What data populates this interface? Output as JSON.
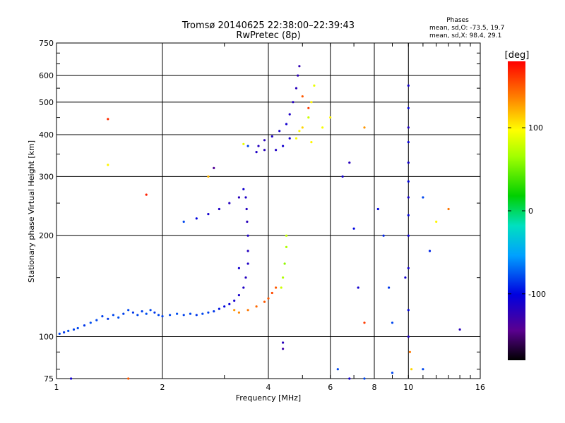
{
  "header": {
    "title_line1": "Tromsø 20140625 22:38:00–22:39:43",
    "title_line2": "RwPretec (8p)"
  },
  "phases_box": {
    "heading": "Phases",
    "line_o": "mean, sd,O: -73.5, 19.7",
    "line_x": "mean, sd,X:  98.4, 29.1"
  },
  "colorbar": {
    "label": "[deg]",
    "range": [
      -180,
      180
    ],
    "ticks": [
      {
        "value": 100,
        "label": "100"
      },
      {
        "value": 0,
        "label": "0"
      },
      {
        "value": -100,
        "label": "-100"
      }
    ]
  },
  "chart_data": {
    "type": "scatter",
    "title": "Tromsø 20140625 22:38:00–22:39:43",
    "subtitle": "RwPretec (8p)",
    "xlabel": "Frequency [MHz]",
    "ylabel": "Stationary phase Virtual Height [km]",
    "x_scale": "log",
    "y_scale": "log",
    "xlim": [
      1,
      16
    ],
    "ylim": [
      75,
      750
    ],
    "x_ticks": [
      {
        "value": 1,
        "label": "1"
      },
      {
        "value": 2,
        "label": "2"
      },
      {
        "value": 4,
        "label": "4"
      },
      {
        "value": 6,
        "label": "6"
      },
      {
        "value": 8,
        "label": "8"
      },
      {
        "value": 10,
        "label": "10"
      },
      {
        "value": 16,
        "label": "16"
      }
    ],
    "y_ticks": [
      {
        "value": 75,
        "label": "75"
      },
      {
        "value": 100,
        "label": "100"
      },
      {
        "value": 200,
        "label": "200"
      },
      {
        "value": 300,
        "label": "300"
      },
      {
        "value": 400,
        "label": "400"
      },
      {
        "value": 500,
        "label": "500"
      },
      {
        "value": 600,
        "label": "600"
      },
      {
        "value": 750,
        "label": "750"
      }
    ],
    "grid": true,
    "color_encoding": "phase [deg], rainbow colormap from -180 to 180",
    "series": [
      {
        "points": [
          {
            "x": 1.02,
            "y": 102,
            "p": -80
          },
          {
            "x": 1.05,
            "y": 103,
            "p": -85
          },
          {
            "x": 1.08,
            "y": 104,
            "p": -78
          },
          {
            "x": 1.12,
            "y": 105,
            "p": -82
          },
          {
            "x": 1.15,
            "y": 106,
            "p": -80
          },
          {
            "x": 1.2,
            "y": 108,
            "p": -85
          },
          {
            "x": 1.25,
            "y": 110,
            "p": -78
          },
          {
            "x": 1.3,
            "y": 112,
            "p": -80
          },
          {
            "x": 1.35,
            "y": 115,
            "p": -82
          },
          {
            "x": 1.4,
            "y": 113,
            "p": -85
          },
          {
            "x": 1.45,
            "y": 116,
            "p": -80
          },
          {
            "x": 1.5,
            "y": 114,
            "p": -78
          },
          {
            "x": 1.55,
            "y": 117,
            "p": -82
          },
          {
            "x": 1.6,
            "y": 120,
            "p": -80
          },
          {
            "x": 1.65,
            "y": 118,
            "p": -85
          },
          {
            "x": 1.7,
            "y": 116,
            "p": -80
          },
          {
            "x": 1.75,
            "y": 119,
            "p": -82
          },
          {
            "x": 1.8,
            "y": 117,
            "p": -78
          },
          {
            "x": 1.85,
            "y": 120,
            "p": -80
          },
          {
            "x": 1.9,
            "y": 118,
            "p": -85
          },
          {
            "x": 1.95,
            "y": 116,
            "p": -80
          },
          {
            "x": 2.0,
            "y": 115,
            "p": -82
          },
          {
            "x": 2.1,
            "y": 116,
            "p": -80
          },
          {
            "x": 2.2,
            "y": 117,
            "p": -78
          },
          {
            "x": 2.3,
            "y": 116,
            "p": -82
          },
          {
            "x": 2.4,
            "y": 117,
            "p": -80
          },
          {
            "x": 2.5,
            "y": 116,
            "p": -85
          },
          {
            "x": 2.6,
            "y": 117,
            "p": -80
          },
          {
            "x": 2.7,
            "y": 118,
            "p": -82
          },
          {
            "x": 2.8,
            "y": 119,
            "p": -85
          },
          {
            "x": 2.9,
            "y": 121,
            "p": -95
          },
          {
            "x": 3.0,
            "y": 123,
            "p": -100
          },
          {
            "x": 3.1,
            "y": 125,
            "p": -105
          },
          {
            "x": 3.2,
            "y": 128,
            "p": -110
          },
          {
            "x": 3.3,
            "y": 133,
            "p": -112
          },
          {
            "x": 3.4,
            "y": 140,
            "p": -115
          },
          {
            "x": 3.45,
            "y": 150,
            "p": -118
          },
          {
            "x": 3.5,
            "y": 165,
            "p": -115
          },
          {
            "x": 3.5,
            "y": 180,
            "p": -118
          },
          {
            "x": 3.5,
            "y": 200,
            "p": -115
          },
          {
            "x": 3.48,
            "y": 220,
            "p": -120
          },
          {
            "x": 3.47,
            "y": 240,
            "p": -118
          },
          {
            "x": 3.45,
            "y": 260,
            "p": -115
          },
          {
            "x": 3.4,
            "y": 275,
            "p": -110
          },
          {
            "x": 2.3,
            "y": 220,
            "p": -80
          },
          {
            "x": 2.5,
            "y": 225,
            "p": -100
          },
          {
            "x": 2.7,
            "y": 232,
            "p": -110
          },
          {
            "x": 2.9,
            "y": 240,
            "p": -115
          },
          {
            "x": 3.1,
            "y": 250,
            "p": -118
          },
          {
            "x": 3.3,
            "y": 260,
            "p": -120
          },
          {
            "x": 3.2,
            "y": 120,
            "p": 130
          },
          {
            "x": 3.3,
            "y": 118,
            "p": 135
          },
          {
            "x": 3.5,
            "y": 120,
            "p": 140
          },
          {
            "x": 3.7,
            "y": 123,
            "p": 145
          },
          {
            "x": 3.9,
            "y": 127,
            "p": 150
          },
          {
            "x": 4.0,
            "y": 130,
            "p": 150
          },
          {
            "x": 4.1,
            "y": 135,
            "p": 155
          },
          {
            "x": 4.2,
            "y": 140,
            "p": 150
          },
          {
            "x": 4.35,
            "y": 140,
            "p": 80
          },
          {
            "x": 4.4,
            "y": 150,
            "p": 70
          },
          {
            "x": 4.45,
            "y": 165,
            "p": 60
          },
          {
            "x": 4.5,
            "y": 185,
            "p": 70
          },
          {
            "x": 4.5,
            "y": 200,
            "p": 75
          },
          {
            "x": 3.9,
            "y": 360,
            "p": -120
          },
          {
            "x": 3.7,
            "y": 355,
            "p": -115
          },
          {
            "x": 3.75,
            "y": 370,
            "p": -118
          },
          {
            "x": 3.9,
            "y": 385,
            "p": -120
          },
          {
            "x": 4.1,
            "y": 395,
            "p": -115
          },
          {
            "x": 4.3,
            "y": 410,
            "p": -112
          },
          {
            "x": 4.5,
            "y": 430,
            "p": -110
          },
          {
            "x": 4.6,
            "y": 460,
            "p": -115
          },
          {
            "x": 4.7,
            "y": 500,
            "p": -118
          },
          {
            "x": 4.8,
            "y": 550,
            "p": -120
          },
          {
            "x": 4.85,
            "y": 600,
            "p": -122
          },
          {
            "x": 4.9,
            "y": 640,
            "p": -125
          },
          {
            "x": 4.2,
            "y": 360,
            "p": -115
          },
          {
            "x": 4.4,
            "y": 370,
            "p": -110
          },
          {
            "x": 4.6,
            "y": 390,
            "p": -112
          },
          {
            "x": 4.9,
            "y": 410,
            "p": 100
          },
          {
            "x": 5.0,
            "y": 420,
            "p": 110
          },
          {
            "x": 5.2,
            "y": 450,
            "p": 80
          },
          {
            "x": 5.3,
            "y": 500,
            "p": 100
          },
          {
            "x": 5.4,
            "y": 560,
            "p": 90
          },
          {
            "x": 4.8,
            "y": 390,
            "p": 95
          },
          {
            "x": 5.3,
            "y": 380,
            "p": 100
          },
          {
            "x": 5.7,
            "y": 420,
            "p": 95
          },
          {
            "x": 6.0,
            "y": 450,
            "p": 100
          },
          {
            "x": 5.0,
            "y": 520,
            "p": 150
          },
          {
            "x": 5.2,
            "y": 480,
            "p": 160
          },
          {
            "x": 1.4,
            "y": 445,
            "p": 165
          },
          {
            "x": 1.4,
            "y": 325,
            "p": 100
          },
          {
            "x": 1.8,
            "y": 265,
            "p": 170
          },
          {
            "x": 2.8,
            "y": 318,
            "p": -140
          },
          {
            "x": 2.7,
            "y": 300,
            "p": 120
          },
          {
            "x": 3.4,
            "y": 375,
            "p": 90
          },
          {
            "x": 3.5,
            "y": 370,
            "p": -80
          },
          {
            "x": 3.3,
            "y": 160,
            "p": -110
          },
          {
            "x": 4.4,
            "y": 92,
            "p": -130
          },
          {
            "x": 4.4,
            "y": 96,
            "p": -120
          },
          {
            "x": 6.3,
            "y": 80,
            "p": -80
          },
          {
            "x": 6.5,
            "y": 300,
            "p": -110
          },
          {
            "x": 6.8,
            "y": 330,
            "p": -120
          },
          {
            "x": 7.0,
            "y": 210,
            "p": -100
          },
          {
            "x": 7.2,
            "y": 140,
            "p": -110
          },
          {
            "x": 7.5,
            "y": 110,
            "p": 160
          },
          {
            "x": 7.5,
            "y": 420,
            "p": 130
          },
          {
            "x": 8.2,
            "y": 240,
            "p": -100
          },
          {
            "x": 8.5,
            "y": 200,
            "p": -90
          },
          {
            "x": 8.8,
            "y": 140,
            "p": -85
          },
          {
            "x": 9.0,
            "y": 110,
            "p": -80
          },
          {
            "x": 10.0,
            "y": 560,
            "p": -110
          },
          {
            "x": 10.0,
            "y": 480,
            "p": -100
          },
          {
            "x": 10.0,
            "y": 420,
            "p": -115
          },
          {
            "x": 10.0,
            "y": 380,
            "p": -105
          },
          {
            "x": 10.0,
            "y": 330,
            "p": -110
          },
          {
            "x": 10.0,
            "y": 290,
            "p": -100
          },
          {
            "x": 10.0,
            "y": 260,
            "p": -110
          },
          {
            "x": 10.0,
            "y": 230,
            "p": -100
          },
          {
            "x": 10.0,
            "y": 200,
            "p": -105
          },
          {
            "x": 10.0,
            "y": 160,
            "p": -110
          },
          {
            "x": 10.0,
            "y": 120,
            "p": -100
          },
          {
            "x": 10.0,
            "y": 100,
            "p": -115
          },
          {
            "x": 9.8,
            "y": 150,
            "p": -110
          },
          {
            "x": 10.1,
            "y": 90,
            "p": 140
          },
          {
            "x": 10.2,
            "y": 80,
            "p": 110
          },
          {
            "x": 11.0,
            "y": 260,
            "p": -80
          },
          {
            "x": 11.5,
            "y": 180,
            "p": -90
          },
          {
            "x": 12.0,
            "y": 220,
            "p": 100
          },
          {
            "x": 13.0,
            "y": 240,
            "p": 140
          },
          {
            "x": 14.0,
            "y": 105,
            "p": -120
          },
          {
            "x": 11.0,
            "y": 80,
            "p": -80
          },
          {
            "x": 1.1,
            "y": 75,
            "p": -110
          },
          {
            "x": 1.6,
            "y": 75,
            "p": 150
          },
          {
            "x": 7.5,
            "y": 75,
            "p": -80
          },
          {
            "x": 6.8,
            "y": 75,
            "p": -110
          },
          {
            "x": 9.0,
            "y": 78,
            "p": -80
          }
        ]
      }
    ]
  }
}
